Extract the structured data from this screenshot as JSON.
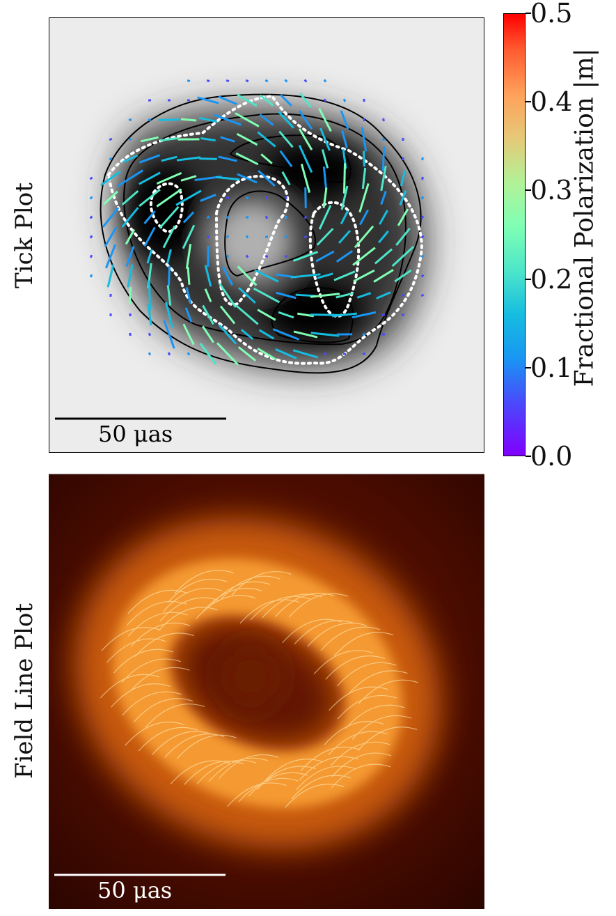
{
  "chart_data": [
    {
      "type": "heatmap",
      "panel_label": "Tick Plot",
      "image": "grayscale total intensity with contours and polarization ticks",
      "scale_bar": "50 μas",
      "colorbar": {
        "label": "Fractional Polarization |m|",
        "range": [
          0.0,
          0.5
        ],
        "ticks": [
          "0.0",
          "0.1",
          "0.2",
          "0.3",
          "0.4",
          "0.5"
        ],
        "colormap": "rainbow",
        "colors": [
          "#8000ff",
          "#1996f3",
          "#4de6c8",
          "#b3f196",
          "#ffa05a",
          "#ff0000"
        ]
      },
      "contour_color": "#000000",
      "dotted_contour_color": "#ffffff",
      "grid": false
    },
    {
      "type": "heatmap",
      "panel_label": "Field Line Plot",
      "image": "afmhot intensity ring with polarization field lines",
      "scale_bar": "50 μas",
      "colors": {
        "background": "#3a0800",
        "ring": "#f08a20",
        "highlight": "#fff2c0"
      },
      "grid": false
    }
  ]
}
